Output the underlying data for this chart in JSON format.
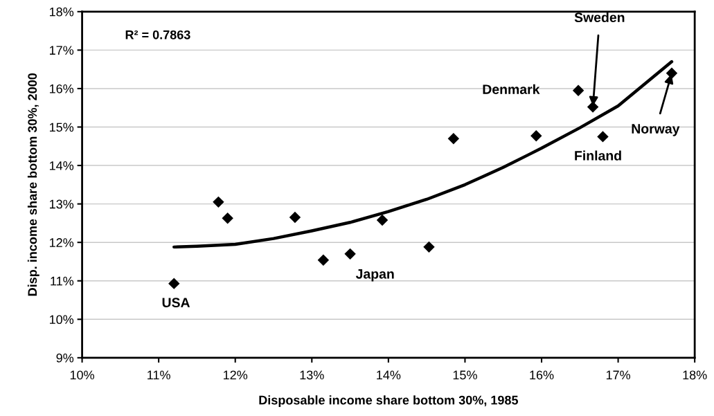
{
  "chart_data": {
    "type": "scatter",
    "xlabel": "Disposable income share bottom 30%, 1985",
    "ylabel": "Disp. income share bottom 30%, 2000",
    "xlim": [
      10,
      18
    ],
    "ylim": [
      9,
      18
    ],
    "xticks": [
      {
        "value": 10,
        "label": "10%"
      },
      {
        "value": 11,
        "label": "11%"
      },
      {
        "value": 12,
        "label": "12%"
      },
      {
        "value": 13,
        "label": "13%"
      },
      {
        "value": 14,
        "label": "14%"
      },
      {
        "value": 15,
        "label": "15%"
      },
      {
        "value": 16,
        "label": "16%"
      },
      {
        "value": 17,
        "label": "17%"
      },
      {
        "value": 18,
        "label": "18%"
      }
    ],
    "yticks": [
      {
        "value": 9,
        "label": "9%"
      },
      {
        "value": 10,
        "label": "10%"
      },
      {
        "value": 11,
        "label": "11%"
      },
      {
        "value": 12,
        "label": "12%"
      },
      {
        "value": 13,
        "label": "13%"
      },
      {
        "value": 14,
        "label": "14%"
      },
      {
        "value": 15,
        "label": "15%"
      },
      {
        "value": 16,
        "label": "16%"
      },
      {
        "value": 17,
        "label": "17%"
      },
      {
        "value": 18,
        "label": "18%"
      }
    ],
    "grid": "y",
    "legend": false,
    "marker": "diamond",
    "series": [
      {
        "color": "#000000",
        "x": [
          11.2,
          11.78,
          11.9,
          12.78,
          13.15,
          13.5,
          13.92,
          14.53,
          14.85,
          15.93,
          16.48,
          16.67,
          16.8,
          17.7
        ],
        "values": [
          10.93,
          13.05,
          12.63,
          12.65,
          11.54,
          11.7,
          12.58,
          11.88,
          14.7,
          14.77,
          15.95,
          15.52,
          14.75,
          16.4
        ]
      },
      {
        "type": "line",
        "color": "#000000",
        "marker": "none",
        "line_style": "solid",
        "x": [
          11.2,
          11.5,
          12,
          12.5,
          13,
          13.5,
          14,
          14.5,
          15,
          15.5,
          16,
          16.5,
          17,
          17.7
        ],
        "values": [
          11.88,
          11.9,
          11.95,
          12.1,
          12.3,
          12.52,
          12.8,
          13.12,
          13.5,
          13.95,
          14.45,
          14.98,
          15.55,
          16.7
        ]
      }
    ],
    "annotations": [
      "R² = 0.7863",
      {
        "text": "USA",
        "x": 11.2,
        "y": 10.93
      },
      {
        "text": "Japan",
        "x": 13.5,
        "y": 11.7
      },
      {
        "text": "Denmark",
        "x": 16.48,
        "y": 15.95
      },
      {
        "text": "Sweden",
        "x": 16.67,
        "y": 15.52
      },
      {
        "text": "Finland",
        "x": 16.8,
        "y": 14.75
      },
      {
        "text": "Norway",
        "x": 17.7,
        "y": 16.4
      }
    ]
  }
}
